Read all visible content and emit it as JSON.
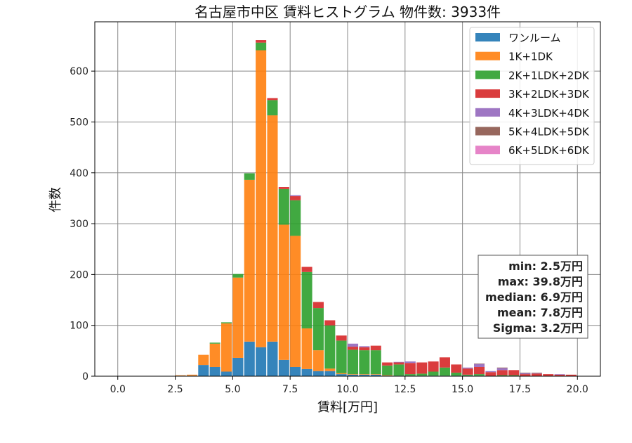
{
  "chart_data": {
    "type": "bar",
    "stacked": true,
    "title": "名古屋市中区 賃料ヒストグラム 物件数: 3933件",
    "xlabel": "賃料[万円]",
    "ylabel": "件数",
    "xlim": [
      -1.0,
      21.0
    ],
    "ylim": [
      0,
      697
    ],
    "xticks": [
      "0.0",
      "2.5",
      "5.0",
      "7.5",
      "10.0",
      "12.5",
      "15.0",
      "17.5",
      "20.0"
    ],
    "yticks": [
      "0",
      "100",
      "200",
      "300",
      "400",
      "500",
      "600"
    ],
    "grid": true,
    "legend_position": "top-right",
    "bin_width": 0.5,
    "x": [
      2.5,
      3.0,
      3.5,
      4.0,
      4.5,
      5.0,
      5.5,
      6.0,
      6.5,
      7.0,
      7.5,
      8.0,
      8.5,
      9.0,
      9.5,
      10.0,
      10.5,
      11.0,
      11.5,
      12.0,
      12.5,
      13.0,
      13.5,
      14.0,
      14.5,
      15.0,
      15.5,
      16.0,
      16.5,
      17.0,
      17.5,
      18.0,
      18.5,
      19.0,
      19.5
    ],
    "series": [
      {
        "name": "ワンルーム",
        "color": "#1f77b4",
        "values": [
          1,
          1,
          22,
          18,
          9,
          36,
          68,
          57,
          68,
          32,
          18,
          14,
          10,
          10,
          4,
          3,
          3,
          3,
          1,
          1,
          1,
          1,
          1,
          1,
          1,
          1,
          1,
          0,
          0,
          0,
          0,
          0,
          0,
          0,
          0
        ]
      },
      {
        "name": "1K+1DK",
        "color": "#ff7f0e",
        "values": [
          1,
          2,
          20,
          46,
          95,
          158,
          318,
          584,
          445,
          266,
          258,
          80,
          41,
          5,
          2,
          1,
          1,
          1,
          1,
          0,
          0,
          0,
          0,
          0,
          0,
          0,
          0,
          0,
          0,
          0,
          0,
          0,
          0,
          0,
          0
        ]
      },
      {
        "name": "2K+1LDK+2DK",
        "color": "#2ca02c",
        "values": [
          0,
          0,
          0,
          2,
          2,
          7,
          13,
          15,
          30,
          70,
          70,
          111,
          83,
          85,
          64,
          48,
          47,
          47,
          19,
          22,
          3,
          4,
          8,
          16,
          6,
          2,
          3,
          0,
          2,
          2,
          0,
          0,
          0,
          0,
          0
        ]
      },
      {
        "name": "3K+2LDK+3DK",
        "color": "#d62728",
        "values": [
          0,
          0,
          0,
          0,
          0,
          0,
          0,
          5,
          4,
          4,
          8,
          10,
          12,
          10,
          10,
          6,
          6,
          9,
          6,
          4,
          22,
          22,
          20,
          20,
          16,
          12,
          14,
          8,
          10,
          10,
          4,
          5,
          4,
          3,
          3
        ]
      },
      {
        "name": "4K+3LDK+4DK",
        "color": "#9467bd",
        "values": [
          0,
          0,
          0,
          0,
          0,
          0,
          0,
          0,
          0,
          0,
          2,
          0,
          0,
          0,
          0,
          6,
          2,
          0,
          0,
          1,
          3,
          0,
          0,
          0,
          0,
          2,
          6,
          2,
          4,
          0,
          2,
          1,
          0,
          1,
          0
        ]
      },
      {
        "name": "5K+4LDK+5DK",
        "color": "#8c564b",
        "values": [
          0,
          0,
          0,
          0,
          0,
          0,
          0,
          0,
          0,
          0,
          0,
          0,
          0,
          0,
          0,
          0,
          0,
          0,
          0,
          0,
          0,
          0,
          0,
          0,
          0,
          0,
          1,
          0,
          1,
          0,
          1,
          1,
          0,
          0,
          0
        ]
      },
      {
        "name": "6K+5LDK+6DK",
        "color": "#e377c2",
        "values": [
          0,
          0,
          0,
          0,
          0,
          0,
          0,
          0,
          0,
          0,
          0,
          0,
          0,
          0,
          0,
          0,
          0,
          0,
          0,
          0,
          0,
          0,
          0,
          0,
          0,
          0,
          0,
          0,
          0,
          0,
          0,
          0,
          0,
          0,
          0
        ]
      }
    ],
    "stats": {
      "min": "min: 2.5万円",
      "max": "max: 39.8万円",
      "median": "median: 6.9万円",
      "mean": "mean: 7.8万円",
      "sigma": "Sigma: 3.2万円"
    }
  }
}
